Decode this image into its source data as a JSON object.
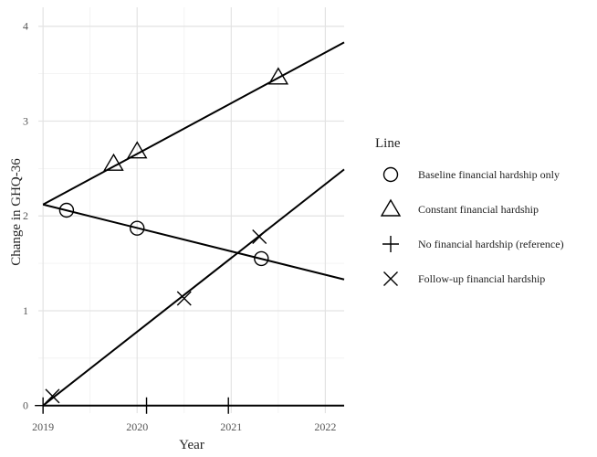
{
  "chart_data": {
    "type": "line",
    "title": "",
    "xlabel": "Year",
    "ylabel": "Change in GHQ-36",
    "xlim": [
      2018.95,
      2022.2
    ],
    "ylim": [
      -0.08,
      4.2
    ],
    "x_ticks": [
      2019,
      2020,
      2021,
      2022
    ],
    "x_tick_labels": [
      "2019",
      "2020",
      "2021",
      "2022"
    ],
    "y_ticks": [
      0,
      1,
      2,
      3,
      4
    ],
    "y_tick_labels": [
      "0",
      "1",
      "2",
      "3",
      "4"
    ],
    "grid": true,
    "legend": {
      "title": "Line",
      "position": "right",
      "entries": [
        {
          "label": "Baseline financial hardship only",
          "shape": "circle"
        },
        {
          "label": "Constant financial hardship",
          "shape": "triangle"
        },
        {
          "label": "No financial hardship (reference)",
          "shape": "plus"
        },
        {
          "label": "Follow-up financial hardship",
          "shape": "cross"
        }
      ]
    },
    "series": [
      {
        "name": "Baseline financial hardship only",
        "shape": "circle",
        "line": [
          [
            2019.0,
            2.12
          ],
          [
            2022.2,
            1.33
          ]
        ],
        "markers": [
          [
            2019.25,
            2.06
          ],
          [
            2020.0,
            1.87
          ],
          [
            2021.32,
            1.55
          ]
        ]
      },
      {
        "name": "Constant financial hardship",
        "shape": "triangle",
        "line": [
          [
            2019.0,
            2.12
          ],
          [
            2022.2,
            3.83
          ]
        ],
        "markers": [
          [
            2019.75,
            2.55
          ],
          [
            2020.0,
            2.68
          ],
          [
            2021.5,
            3.46
          ]
        ]
      },
      {
        "name": "No financial hardship (reference)",
        "shape": "plus",
        "line": [
          [
            2019.0,
            0.0
          ],
          [
            2022.2,
            0.0
          ]
        ],
        "markers": [
          [
            2019.0,
            0.0
          ],
          [
            2020.1,
            0.0
          ],
          [
            2020.97,
            0.0
          ]
        ]
      },
      {
        "name": "Follow-up financial hardship",
        "shape": "cross",
        "line": [
          [
            2019.0,
            0.0
          ],
          [
            2022.2,
            2.49
          ]
        ],
        "markers": [
          [
            2019.1,
            0.1
          ],
          [
            2020.5,
            1.13
          ],
          [
            2021.3,
            1.78
          ]
        ]
      }
    ]
  }
}
